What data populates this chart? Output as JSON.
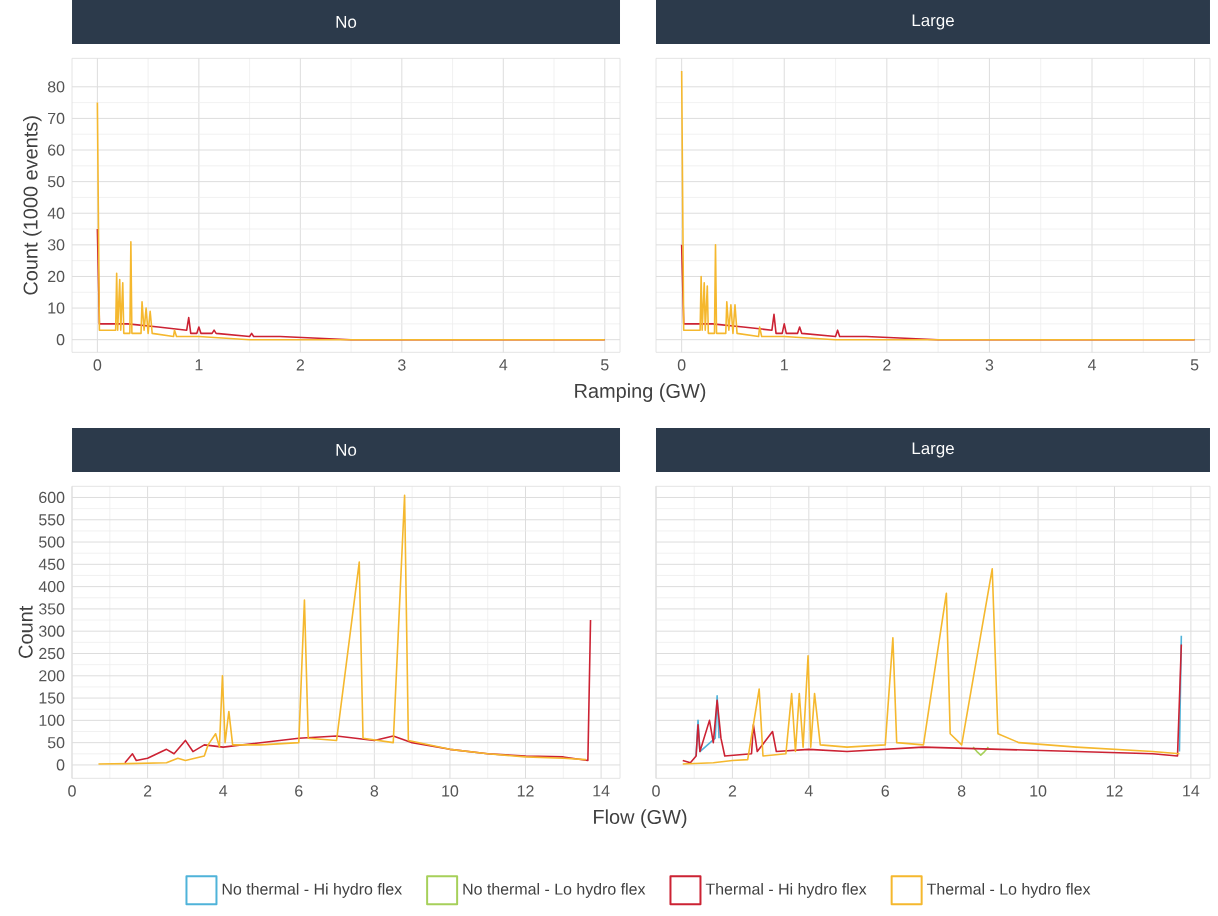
{
  "chart_data": [
    {
      "type": "line",
      "title": "No",
      "xlabel": "Ramping (GW)",
      "ylabel": "Count (1000 events)",
      "xlim": [
        -0.25,
        5.15
      ],
      "ylim": [
        -4,
        89
      ],
      "xticks": [
        0,
        1,
        2,
        3,
        4,
        5
      ],
      "yticks": [
        0,
        10,
        20,
        30,
        40,
        50,
        60,
        70,
        80
      ],
      "grid": true,
      "series": [
        {
          "color": "#cc2233",
          "x": [
            0,
            0.02,
            0.3,
            0.6,
            0.88,
            0.9,
            0.92,
            0.98,
            1.0,
            1.02,
            1.13,
            1.15,
            1.17,
            1.5,
            1.52,
            1.54,
            1.8,
            2.5,
            5
          ],
          "values": [
            35,
            5,
            5,
            4,
            3,
            7,
            2,
            2,
            4,
            2,
            2,
            3,
            2,
            1,
            2,
            1,
            1,
            0,
            0
          ]
        },
        {
          "color": "#f5b82e",
          "x": [
            0,
            0.02,
            0.18,
            0.19,
            0.2,
            0.22,
            0.23,
            0.25,
            0.26,
            0.32,
            0.33,
            0.34,
            0.43,
            0.44,
            0.46,
            0.48,
            0.5,
            0.52,
            0.54,
            0.75,
            0.76,
            0.78,
            1.0,
            1.5,
            2,
            5
          ],
          "values": [
            75,
            3,
            3,
            21,
            3,
            19,
            3,
            18,
            2,
            2,
            31,
            2,
            2,
            12,
            3,
            10,
            2,
            9,
            2,
            1,
            3,
            1,
            1,
            0,
            0,
            0
          ]
        }
      ]
    },
    {
      "type": "line",
      "title": "Large",
      "xlim": [
        -0.25,
        5.15
      ],
      "ylim": [
        -4,
        89
      ],
      "xticks": [
        0,
        1,
        2,
        3,
        4,
        5
      ],
      "yticks": [
        0,
        10,
        20,
        30,
        40,
        50,
        60,
        70,
        80
      ],
      "grid": true,
      "tick_labels": "x",
      "series": [
        {
          "color": "#cc2233",
          "x": [
            0,
            0.02,
            0.3,
            0.6,
            0.88,
            0.9,
            0.92,
            0.98,
            1.0,
            1.02,
            1.13,
            1.15,
            1.17,
            1.5,
            1.52,
            1.54,
            1.8,
            2.5,
            5
          ],
          "values": [
            30,
            5,
            5,
            4,
            3,
            8,
            2,
            2,
            5,
            2,
            2,
            4,
            2,
            1,
            3,
            1,
            1,
            0,
            0
          ]
        },
        {
          "color": "#f5b82e",
          "x": [
            0,
            0.02,
            0.18,
            0.19,
            0.2,
            0.22,
            0.23,
            0.25,
            0.26,
            0.32,
            0.33,
            0.34,
            0.43,
            0.44,
            0.46,
            0.48,
            0.5,
            0.52,
            0.54,
            0.75,
            0.76,
            0.78,
            1.0,
            1.5,
            2,
            5
          ],
          "values": [
            85,
            3,
            3,
            20,
            3,
            18,
            3,
            17,
            2,
            2,
            30,
            2,
            2,
            12,
            3,
            11,
            2,
            11,
            2,
            1,
            4,
            1,
            1,
            0,
            0,
            0
          ]
        }
      ]
    },
    {
      "type": "line",
      "title": "No",
      "xlabel": "Flow (GW)",
      "ylabel": "Count",
      "xlim": [
        0,
        14.5
      ],
      "ylim": [
        -30,
        625
      ],
      "xticks": [
        0,
        2,
        4,
        6,
        8,
        10,
        12,
        14
      ],
      "yticks": [
        0,
        50,
        100,
        150,
        200,
        250,
        300,
        350,
        400,
        450,
        500,
        550,
        600
      ],
      "grid": true,
      "series": [
        {
          "color": "#cc2233",
          "x": [
            1.4,
            1.6,
            1.7,
            2,
            2.5,
            2.7,
            3,
            3.2,
            3.5,
            4,
            5,
            6,
            7,
            8,
            8.5,
            9,
            10,
            11,
            12,
            13,
            13.65,
            13.72
          ],
          "values": [
            5,
            25,
            10,
            15,
            35,
            25,
            55,
            30,
            45,
            40,
            50,
            60,
            65,
            55,
            65,
            50,
            35,
            25,
            20,
            18,
            10,
            325
          ]
        },
        {
          "color": "#f5b82e",
          "x": [
            0.7,
            1.5,
            2.5,
            2.8,
            3.0,
            3.5,
            3.6,
            3.8,
            3.9,
            3.98,
            4.05,
            4.15,
            4.25,
            5,
            6,
            6.15,
            6.25,
            7,
            7.6,
            7.7,
            8.5,
            8.8,
            8.9,
            10,
            11,
            12,
            13,
            13.6
          ],
          "values": [
            2,
            3,
            5,
            15,
            10,
            20,
            45,
            70,
            40,
            200,
            50,
            120,
            45,
            45,
            50,
            370,
            60,
            55,
            455,
            60,
            50,
            605,
            55,
            35,
            25,
            18,
            15,
            12
          ]
        }
      ]
    },
    {
      "type": "line",
      "title": "Large",
      "xlim": [
        0,
        14.5
      ],
      "ylim": [
        -30,
        625
      ],
      "xticks": [
        0,
        2,
        4,
        6,
        8,
        10,
        12,
        14
      ],
      "yticks": [
        0,
        50,
        100,
        150,
        200,
        250,
        300,
        350,
        400,
        450,
        500,
        550,
        600
      ],
      "grid": true,
      "tick_labels": "x",
      "legend": "bottom",
      "series": [
        {
          "name": "No thermal - Hi hydro flex",
          "color": "#4fb3d9",
          "x": [
            1.05,
            1.1,
            1.15,
            1.55,
            1.6,
            1.65,
            1.7,
            13.7,
            13.75
          ],
          "values": [
            20,
            100,
            30,
            60,
            155,
            60,
            null,
            30,
            290
          ]
        },
        {
          "name": "No thermal - Lo hydro flex",
          "color": "#a6d05a",
          "x": [
            8.3,
            8.4,
            8.5,
            8.6,
            8.7
          ],
          "values": [
            40,
            30,
            22,
            30,
            40
          ]
        },
        {
          "name": "Thermal - Hi hydro flex",
          "color": "#cc2233",
          "x": [
            0.7,
            0.9,
            1.05,
            1.1,
            1.15,
            1.4,
            1.5,
            1.6,
            1.7,
            1.8,
            2.5,
            2.55,
            2.65,
            3.05,
            3.15,
            4,
            5,
            7,
            9,
            11,
            13,
            13.65,
            13.75
          ],
          "values": [
            10,
            5,
            20,
            90,
            30,
            100,
            50,
            145,
            60,
            20,
            25,
            90,
            30,
            75,
            30,
            35,
            30,
            40,
            35,
            30,
            25,
            20,
            270
          ]
        },
        {
          "name": "Thermal - Lo hydro flex",
          "color": "#f5b82e",
          "x": [
            0.7,
            1.5,
            2,
            2.4,
            2.7,
            2.8,
            3.4,
            3.55,
            3.65,
            3.75,
            3.85,
            3.98,
            4.05,
            4.15,
            4.3,
            5,
            6,
            6.2,
            6.3,
            7,
            7.6,
            7.7,
            8,
            8.8,
            8.95,
            9.5,
            11,
            13,
            13.7
          ],
          "values": [
            2,
            5,
            10,
            12,
            170,
            20,
            25,
            160,
            30,
            160,
            40,
            245,
            40,
            160,
            45,
            40,
            45,
            285,
            50,
            45,
            385,
            70,
            45,
            440,
            70,
            50,
            40,
            30,
            25
          ]
        }
      ]
    }
  ]
}
